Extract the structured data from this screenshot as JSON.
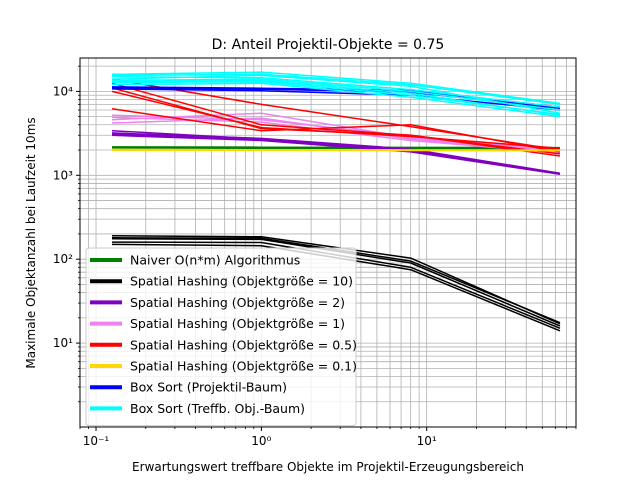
{
  "chart_data": {
    "type": "line",
    "title": "D: Anteil Projektil-Objekte = 0.75",
    "xlabel": "Erwartungswert treffbare Objekte im Projektil-Erzeugungsbereich",
    "ylabel": "Maximale Objektanzahl bei Laufzeit 10ms",
    "xscale": "log",
    "yscale": "log",
    "xlim": [
      0.08,
      80
    ],
    "ylim": [
      1,
      25000
    ],
    "grid": true,
    "x_tick_labels": [
      "10⁻¹",
      "10⁰",
      "10¹"
    ],
    "y_tick_labels": [
      "10¹",
      "10²",
      "10³",
      "10⁴"
    ],
    "legend_position": "lower-left",
    "x": [
      0.125,
      1,
      8,
      64
    ],
    "series": [
      {
        "name": "Naiver O(n*m) Algorithmus",
        "color": "#008000",
        "runs": [
          [
            2150,
            2130,
            2110,
            2100
          ],
          [
            2120,
            2100,
            2080,
            2080
          ],
          [
            2180,
            2160,
            2150,
            2140
          ],
          [
            2140,
            2120,
            2100,
            2090
          ]
        ]
      },
      {
        "name": "Spatial Hashing (Objektgröße = 10)",
        "color": "#000000",
        "runs": [
          [
            190,
            185,
            103,
            17
          ],
          [
            175,
            172,
            90,
            16
          ],
          [
            160,
            158,
            80,
            15
          ],
          [
            150,
            145,
            75,
            14
          ],
          [
            180,
            178,
            95,
            17.5
          ]
        ]
      },
      {
        "name": "Spatial Hashing (Objektgröße = 2)",
        "color": "#8000c0",
        "runs": [
          [
            3400,
            2700,
            2000,
            1050
          ],
          [
            3100,
            2650,
            1950,
            1040
          ],
          [
            3000,
            2600,
            1900,
            1030
          ],
          [
            3200,
            2750,
            2050,
            1060
          ]
        ]
      },
      {
        "name": "Spatial Hashing (Objektgröße = 1)",
        "color": "#ee82ee",
        "runs": [
          [
            5200,
            4600,
            2900,
            2000
          ],
          [
            4600,
            5500,
            2800,
            1950
          ],
          [
            4200,
            4800,
            2700,
            1900
          ],
          [
            4900,
            4300,
            2600,
            1850
          ]
        ]
      },
      {
        "name": "Spatial Hashing (Objektgröße = 0.5)",
        "color": "#ff0000",
        "runs": [
          [
            12500,
            4000,
            3000,
            1800
          ],
          [
            11000,
            3600,
            3000,
            1700
          ],
          [
            6200,
            3400,
            4000,
            1900
          ],
          [
            14000,
            7000,
            3800,
            2000
          ],
          [
            10000,
            3700,
            2900,
            2100
          ]
        ]
      },
      {
        "name": "Spatial Hashing (Objektgröße = 0.1)",
        "color": "#ffd700",
        "runs": [
          [
            2000,
            2000,
            1990,
            1980
          ],
          [
            2030,
            2020,
            2010,
            2000
          ],
          [
            1990,
            1985,
            1975,
            1965
          ]
        ]
      },
      {
        "name": "Box Sort (Projektil-Baum)",
        "color": "#0000ff",
        "runs": [
          [
            11000,
            10600,
            9800,
            6300
          ],
          [
            10700,
            10200,
            9000,
            6000
          ],
          [
            11300,
            10900,
            10300,
            6500
          ]
        ]
      },
      {
        "name": "Box Sort (Treffb. Obj.-Baum)",
        "color": "#00ffff",
        "runs": [
          [
            16000,
            17000,
            12500,
            7200
          ],
          [
            15000,
            14500,
            10500,
            6500
          ],
          [
            14000,
            15500,
            11500,
            5500
          ],
          [
            13000,
            13500,
            9500,
            5200
          ],
          [
            12000,
            12500,
            8500,
            5000
          ],
          [
            13500,
            14000,
            10000,
            6000
          ],
          [
            15500,
            16000,
            12000,
            7000
          ],
          [
            12800,
            13000,
            9000,
            5300
          ]
        ]
      }
    ]
  }
}
